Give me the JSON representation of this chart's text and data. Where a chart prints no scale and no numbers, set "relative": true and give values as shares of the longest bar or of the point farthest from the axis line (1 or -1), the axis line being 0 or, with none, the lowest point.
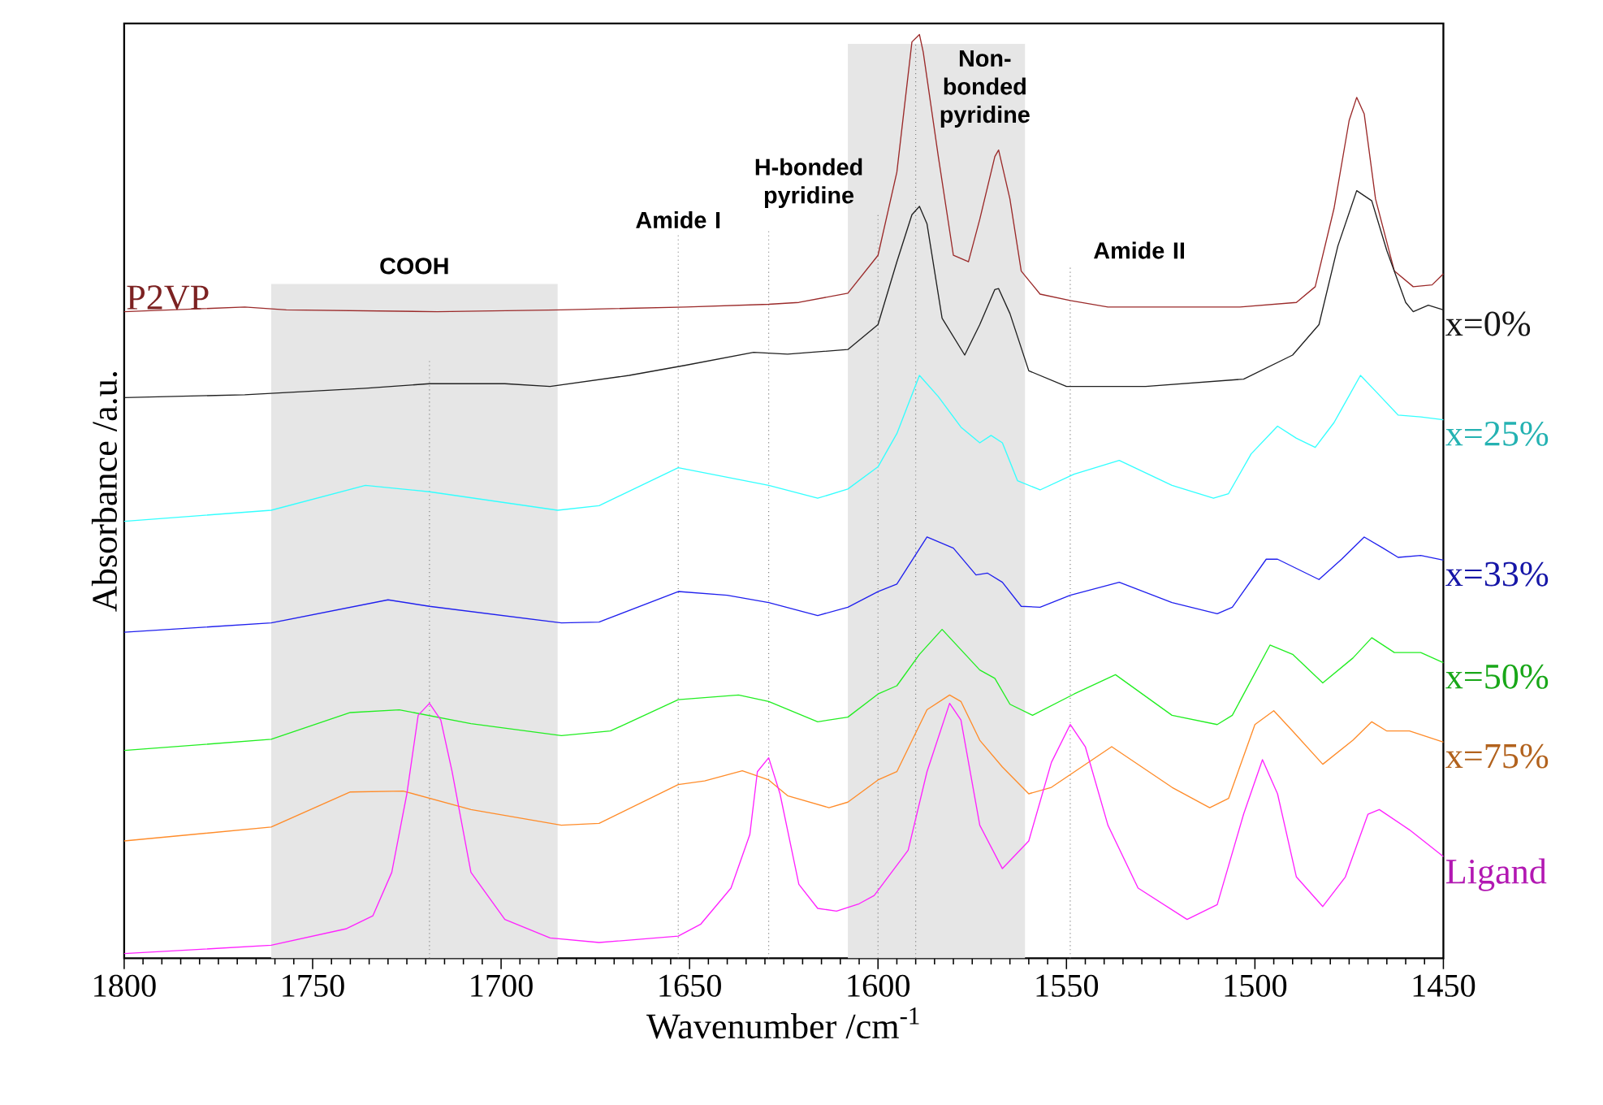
{
  "chart_data": {
    "type": "line",
    "relative": true,
    "xlabel": "Wavenumber /cm$^{-1}$",
    "ylabel": "Absorbance /a.u.",
    "xlim": [
      1800,
      1450
    ],
    "xticks": [
      1800,
      1750,
      1700,
      1650,
      1600,
      1550,
      1500,
      1450
    ],
    "tick_labels": "x",
    "series": [
      {
        "name": "P2VP",
        "color": "#9b2a2a",
        "x": [
          1800,
          1768,
          1757,
          1717,
          1684,
          1651,
          1629,
          1621,
          1608,
          1600,
          1595,
          1591,
          1589,
          1588,
          1584,
          1580,
          1576,
          1573,
          1569,
          1568,
          1565,
          1562,
          1557,
          1549,
          1539,
          1504,
          1489,
          1484,
          1479,
          1475,
          1473,
          1471,
          1468,
          1463,
          1458,
          1453,
          1450
        ],
        "values": [
          0.7,
          0.705,
          0.702,
          0.7,
          0.702,
          0.705,
          0.708,
          0.71,
          0.72,
          0.761,
          0.851,
          0.992,
          1,
          0.981,
          0.868,
          0.761,
          0.754,
          0.8,
          0.868,
          0.875,
          0.822,
          0.744,
          0.719,
          0.712,
          0.705,
          0.705,
          0.71,
          0.727,
          0.812,
          0.907,
          0.932,
          0.914,
          0.822,
          0.744,
          0.727,
          0.729,
          0.741
        ]
      },
      {
        "name": "x=0%",
        "color": "#202020",
        "x": [
          1800,
          1768,
          1736,
          1719,
          1699,
          1687,
          1666,
          1651,
          1633,
          1624,
          1608,
          1600,
          1595,
          1591,
          1589,
          1587,
          1583,
          1577,
          1573,
          1569,
          1568,
          1565,
          1560,
          1550,
          1529,
          1503,
          1490,
          1483,
          1478,
          1473,
          1469,
          1465,
          1460,
          1458,
          1454,
          1450
        ],
        "values": [
          0.607,
          0.61,
          0.617,
          0.622,
          0.622,
          0.619,
          0.631,
          0.642,
          0.656,
          0.654,
          0.659,
          0.686,
          0.754,
          0.805,
          0.814,
          0.795,
          0.693,
          0.653,
          0.686,
          0.724,
          0.725,
          0.698,
          0.636,
          0.619,
          0.619,
          0.627,
          0.653,
          0.686,
          0.771,
          0.831,
          0.82,
          0.766,
          0.71,
          0.7,
          0.707,
          0.702
        ]
      },
      {
        "name": "x=25%",
        "color": "#33ffff",
        "x": [
          1800,
          1761,
          1736,
          1719,
          1685,
          1674,
          1653,
          1629,
          1616,
          1608,
          1600,
          1595,
          1589,
          1584,
          1578,
          1573,
          1570,
          1567,
          1563,
          1557,
          1548,
          1536,
          1522,
          1511,
          1507,
          1501,
          1494,
          1489,
          1484,
          1479,
          1472,
          1468,
          1462,
          1456,
          1450
        ],
        "values": [
          0.473,
          0.485,
          0.512,
          0.505,
          0.485,
          0.49,
          0.531,
          0.512,
          0.498,
          0.508,
          0.532,
          0.568,
          0.631,
          0.608,
          0.575,
          0.558,
          0.566,
          0.558,
          0.517,
          0.507,
          0.524,
          0.539,
          0.512,
          0.498,
          0.503,
          0.546,
          0.576,
          0.563,
          0.553,
          0.58,
          0.631,
          0.614,
          0.588,
          0.586,
          0.583
        ]
      },
      {
        "name": "x=33%",
        "color": "#2020ee",
        "x": [
          1800,
          1761,
          1730,
          1719,
          1684,
          1674,
          1653,
          1640,
          1629,
          1616,
          1608,
          1600,
          1595,
          1587,
          1580,
          1574,
          1571,
          1567,
          1562,
          1557,
          1549,
          1536,
          1522,
          1510,
          1506,
          1497,
          1494,
          1483,
          1477,
          1471,
          1466,
          1462,
          1456,
          1450
        ],
        "values": [
          0.353,
          0.363,
          0.388,
          0.381,
          0.363,
          0.364,
          0.397,
          0.393,
          0.385,
          0.371,
          0.38,
          0.397,
          0.405,
          0.456,
          0.444,
          0.415,
          0.417,
          0.407,
          0.381,
          0.38,
          0.393,
          0.407,
          0.385,
          0.373,
          0.38,
          0.432,
          0.432,
          0.41,
          0.432,
          0.456,
          0.444,
          0.434,
          0.436,
          0.431
        ]
      },
      {
        "name": "x=50%",
        "color": "#22ee22",
        "x": [
          1800,
          1761,
          1740,
          1727,
          1708,
          1684,
          1671,
          1653,
          1637,
          1629,
          1616,
          1608,
          1600,
          1595,
          1589,
          1583,
          1578,
          1573,
          1569,
          1565,
          1559,
          1548,
          1537,
          1522,
          1510,
          1506,
          1496,
          1490,
          1482,
          1474,
          1469,
          1463,
          1456,
          1450
        ],
        "values": [
          0.225,
          0.237,
          0.266,
          0.269,
          0.254,
          0.241,
          0.246,
          0.28,
          0.285,
          0.278,
          0.256,
          0.261,
          0.286,
          0.295,
          0.329,
          0.356,
          0.334,
          0.312,
          0.303,
          0.275,
          0.263,
          0.286,
          0.307,
          0.263,
          0.253,
          0.263,
          0.339,
          0.329,
          0.298,
          0.325,
          0.347,
          0.331,
          0.331,
          0.32
        ]
      },
      {
        "name": "x=75%",
        "color": "#ff8c2a",
        "x": [
          1800,
          1761,
          1740,
          1726,
          1708,
          1684,
          1674,
          1653,
          1646,
          1636,
          1629,
          1624,
          1613,
          1608,
          1600,
          1595,
          1587,
          1581,
          1578,
          1573,
          1567,
          1560,
          1554,
          1538,
          1522,
          1512,
          1507,
          1500,
          1495,
          1490,
          1482,
          1474,
          1469,
          1465,
          1459,
          1450
        ],
        "values": [
          0.127,
          0.142,
          0.18,
          0.181,
          0.161,
          0.144,
          0.146,
          0.188,
          0.192,
          0.203,
          0.193,
          0.176,
          0.163,
          0.169,
          0.193,
          0.202,
          0.269,
          0.285,
          0.278,
          0.236,
          0.207,
          0.178,
          0.185,
          0.229,
          0.185,
          0.163,
          0.173,
          0.253,
          0.268,
          0.246,
          0.21,
          0.236,
          0.256,
          0.246,
          0.246,
          0.234
        ]
      },
      {
        "name": "Ligand",
        "color": "#ff22ff",
        "x": [
          1800,
          1761,
          1741,
          1734,
          1729,
          1725,
          1722,
          1719,
          1716,
          1713,
          1708,
          1699,
          1687,
          1674,
          1653,
          1647,
          1639,
          1634,
          1632,
          1629,
          1626,
          1621,
          1616,
          1611,
          1605,
          1601,
          1592,
          1587,
          1581,
          1578,
          1573,
          1567,
          1560,
          1554,
          1549,
          1545,
          1539,
          1531,
          1518,
          1510,
          1503,
          1498,
          1494,
          1489,
          1482,
          1476,
          1470,
          1467,
          1459,
          1450
        ],
        "values": [
          0.005,
          0.014,
          0.032,
          0.046,
          0.093,
          0.178,
          0.263,
          0.276,
          0.258,
          0.202,
          0.093,
          0.042,
          0.022,
          0.017,
          0.024,
          0.037,
          0.076,
          0.134,
          0.202,
          0.217,
          0.178,
          0.08,
          0.054,
          0.051,
          0.059,
          0.068,
          0.117,
          0.202,
          0.276,
          0.258,
          0.144,
          0.097,
          0.127,
          0.212,
          0.253,
          0.229,
          0.144,
          0.076,
          0.042,
          0.058,
          0.156,
          0.215,
          0.178,
          0.088,
          0.056,
          0.088,
          0.156,
          0.161,
          0.139,
          0.11
        ]
      }
    ],
    "bands": [
      {
        "axis": "x",
        "from": 1761,
        "to": 1685,
        "color": "#e6e6e6",
        "label": "COOH"
      },
      {
        "axis": "x",
        "from": 1608,
        "to": 1561,
        "color": "#e6e6e6"
      }
    ],
    "ref_lines": [
      {
        "axis": "x",
        "value": 1719
      },
      {
        "axis": "x",
        "value": 1653,
        "label": "Amide I"
      },
      {
        "axis": "x",
        "value": 1629
      },
      {
        "axis": "x",
        "value": 1600,
        "label": "H-bonded pyridine"
      },
      {
        "axis": "x",
        "value": 1590,
        "label": "Non-bonded pyridine"
      },
      {
        "axis": "x",
        "value": 1549,
        "label": "Amide II"
      }
    ]
  }
}
